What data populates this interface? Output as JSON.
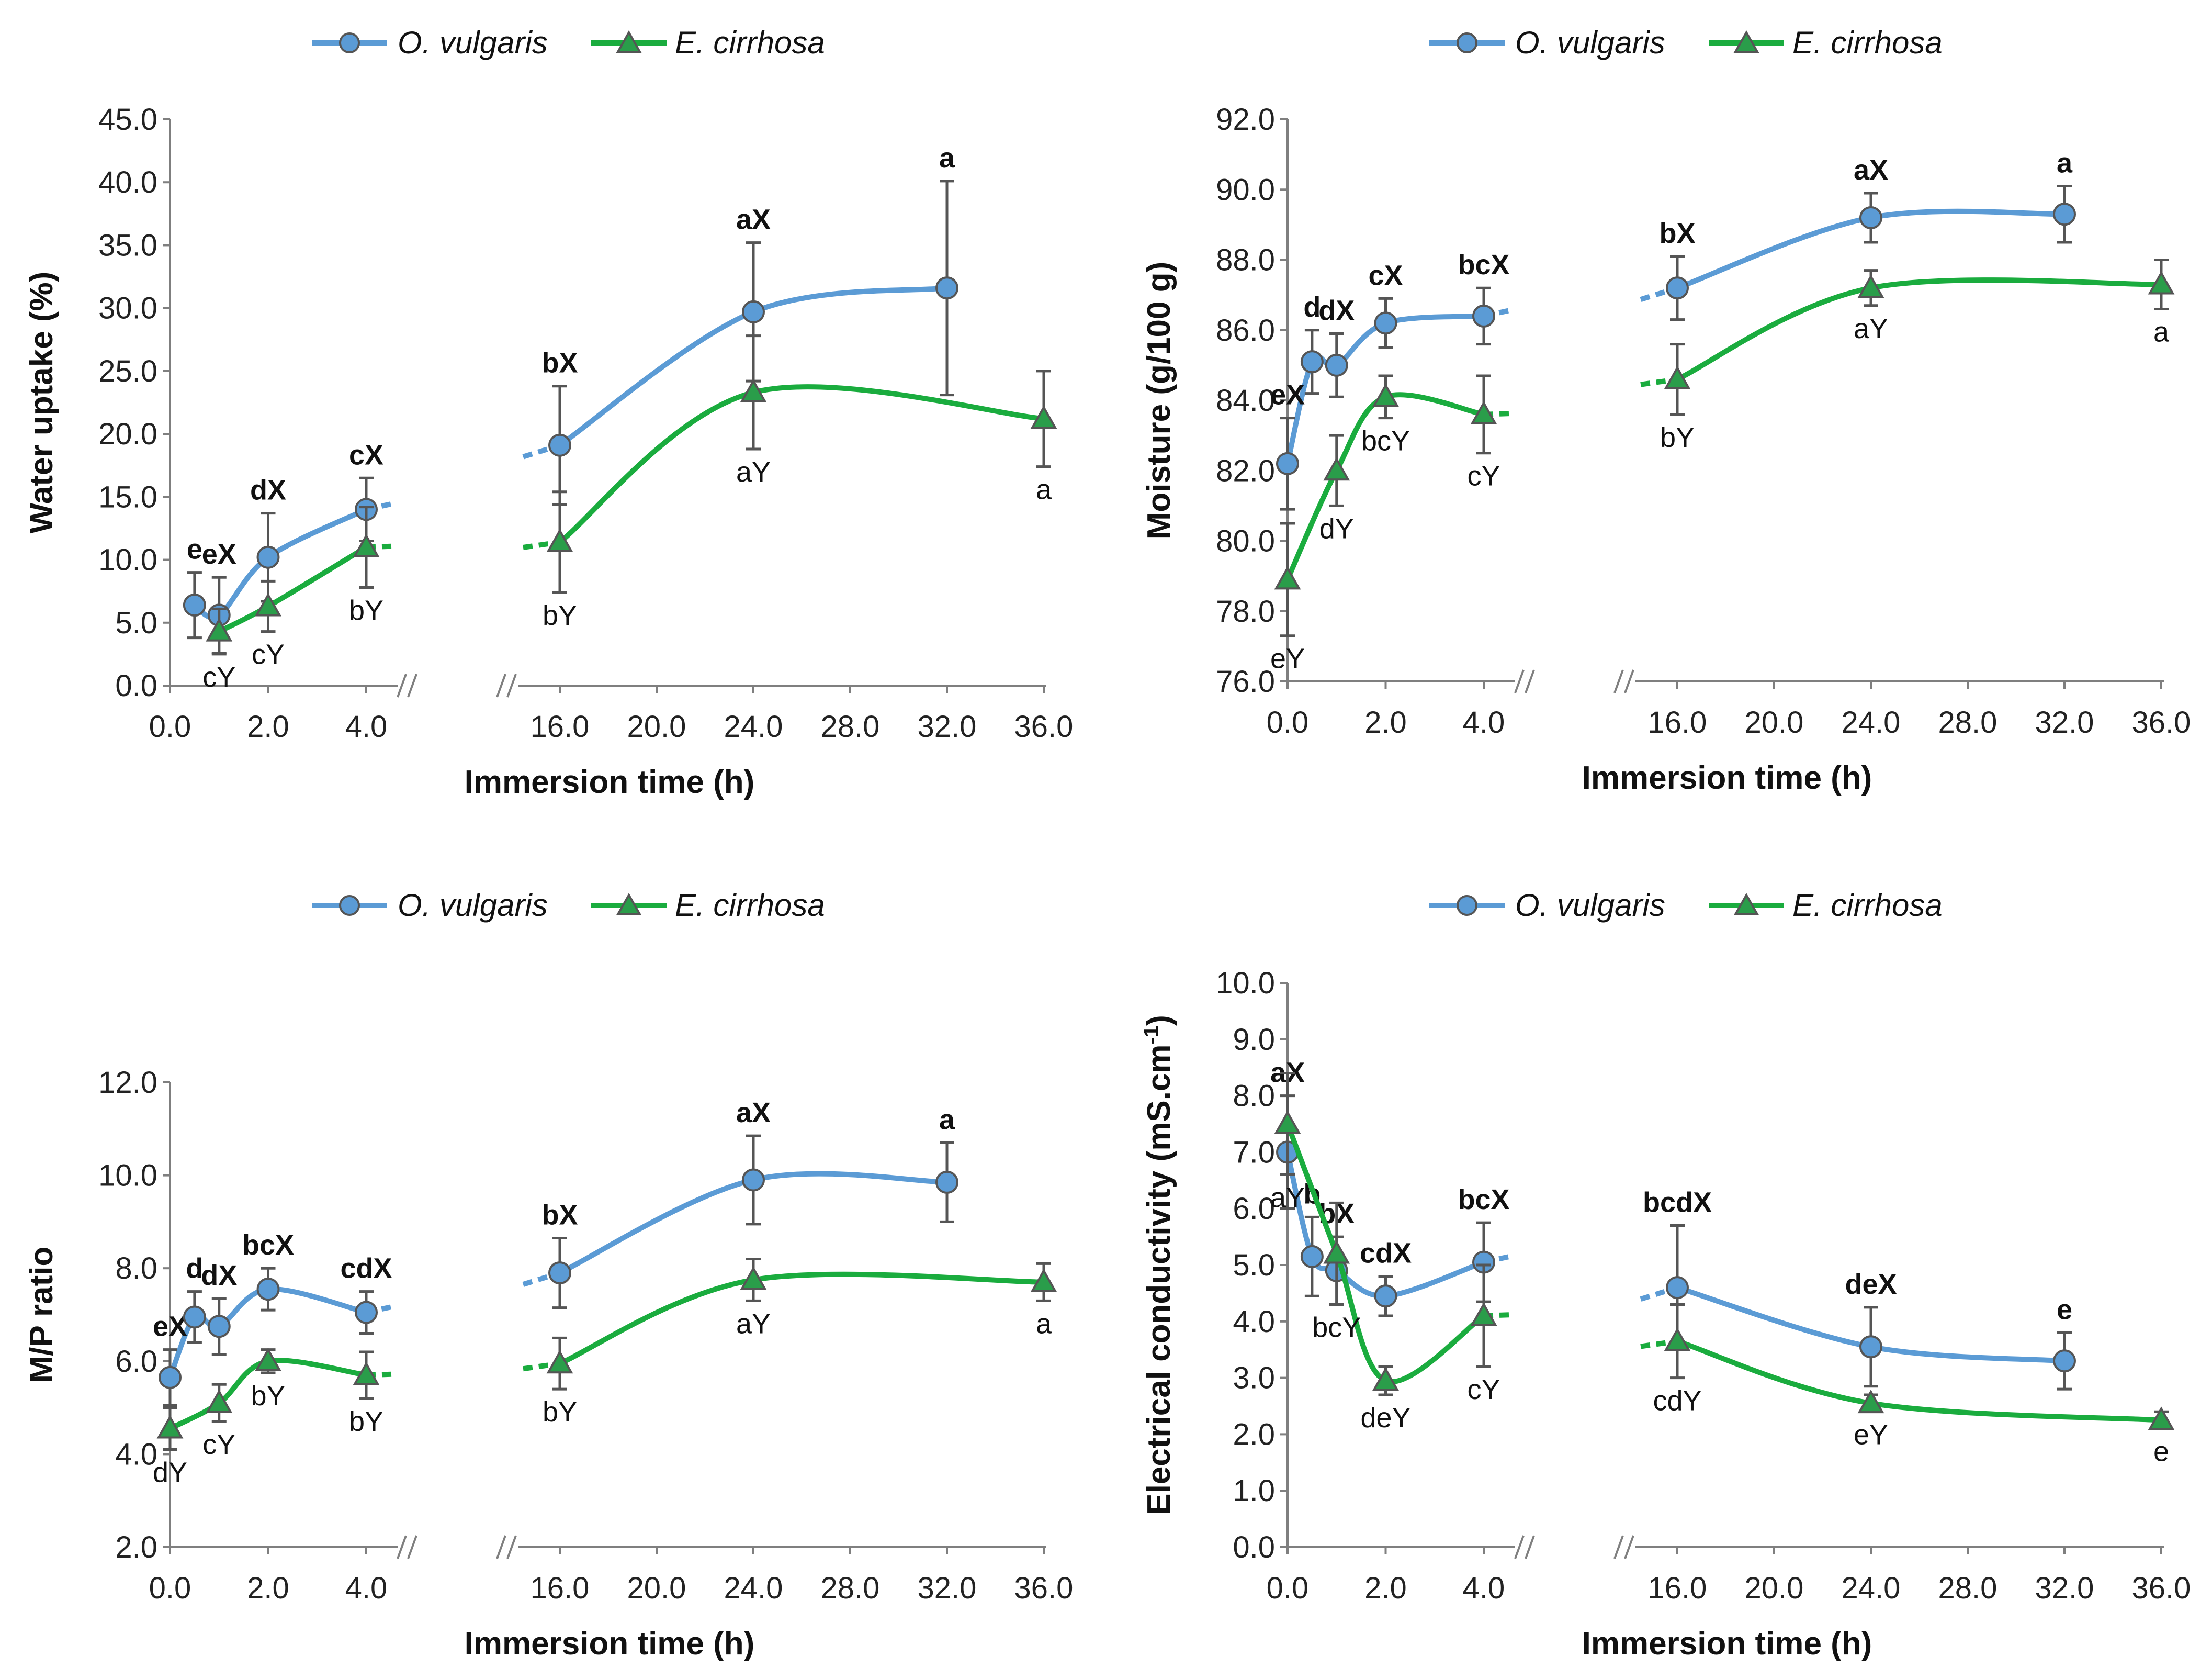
{
  "colors": {
    "ov": "#5b9bd5",
    "ec": "#1aac3e",
    "ov_marker": "#5b9bd5",
    "ec_marker": "#2a9d4a",
    "error": "#555555",
    "axis": "#7f7f7f"
  },
  "legend": {
    "ov": "O. vulgaris",
    "ec": "E. cirrhosa"
  },
  "chart_data": [
    {
      "type": "line",
      "panel": "top-left",
      "ylabel": "Water uptake (%)",
      "xlabel": "Immersion time (h)",
      "ylim": [
        0,
        45
      ],
      "ystep": 5,
      "yticks": [
        "0.0",
        "5.0",
        "10.0",
        "15.0",
        "20.0",
        "25.0",
        "30.0",
        "35.0",
        "40.0",
        "45.0"
      ],
      "xticks_left": [
        "0.0",
        "2.0",
        "4.0"
      ],
      "xticks_right": [
        "16.0",
        "20.0",
        "24.0",
        "28.0",
        "32.0",
        "36.0"
      ],
      "series": [
        {
          "name": "O. vulgaris",
          "left": {
            "x": [
              0.5,
              1,
              2,
              4
            ],
            "y": [
              6.4,
              5.6,
              10.2,
              14.0
            ],
            "err": [
              2.6,
              3.0,
              3.5,
              2.5
            ],
            "labels": [
              "e",
              "eX",
              "dX",
              "cX"
            ]
          },
          "right": {
            "x": [
              16,
              24,
              32
            ],
            "y": [
              19.1,
              29.7,
              31.6
            ],
            "err": [
              4.7,
              5.5,
              8.5
            ],
            "labels": [
              "bX",
              "aX",
              "a"
            ]
          }
        },
        {
          "name": "E. cirrhosa",
          "left": {
            "x": [
              1,
              2,
              4
            ],
            "y": [
              4.3,
              6.3,
              11.0
            ],
            "err": [
              1.8,
              2.0,
              3.2
            ],
            "labels": [
              "cY",
              "cY",
              "bY"
            ]
          },
          "right": {
            "x": [
              16,
              24,
              36
            ],
            "y": [
              11.4,
              23.3,
              21.2
            ],
            "err": [
              4.0,
              4.5,
              3.8
            ],
            "labels": [
              "bY",
              "aY",
              "a"
            ]
          }
        }
      ]
    },
    {
      "type": "line",
      "panel": "top-right",
      "ylabel": "Moisture (g/100 g)",
      "xlabel": "Immersion time (h)",
      "ylim": [
        76,
        92
      ],
      "ystep": 2,
      "yticks": [
        "76.0",
        "78.0",
        "80.0",
        "82.0",
        "84.0",
        "86.0",
        "88.0",
        "90.0",
        "92.0"
      ],
      "xticks_left": [
        "0.0",
        "2.0",
        "4.0"
      ],
      "xticks_right": [
        "16.0",
        "20.0",
        "24.0",
        "28.0",
        "32.0",
        "36.0"
      ],
      "series": [
        {
          "name": "O. vulgaris",
          "left": {
            "x": [
              0,
              0.5,
              1,
              2,
              4
            ],
            "y": [
              82.2,
              85.1,
              85.0,
              86.2,
              86.4
            ],
            "err": [
              1.3,
              0.9,
              0.9,
              0.7,
              0.8
            ],
            "labels": [
              "eX",
              "d",
              "dX",
              "cX",
              "bcX"
            ]
          },
          "right": {
            "x": [
              16,
              24,
              32
            ],
            "y": [
              87.2,
              89.2,
              89.3
            ],
            "err": [
              0.9,
              0.7,
              0.8
            ],
            "labels": [
              "bX",
              "aX",
              "a"
            ]
          }
        },
        {
          "name": "E. cirrhosa",
          "left": {
            "x": [
              0,
              1,
              2,
              4
            ],
            "y": [
              78.9,
              82.0,
              84.1,
              83.6
            ],
            "err": [
              1.6,
              1.0,
              0.6,
              1.1
            ],
            "labels": [
              "eY",
              "dY",
              "bcY",
              "cY"
            ]
          },
          "right": {
            "x": [
              16,
              24,
              36
            ],
            "y": [
              84.6,
              87.2,
              87.3
            ],
            "err": [
              1.0,
              0.5,
              0.7
            ],
            "labels": [
              "bY",
              "aY",
              "a"
            ]
          }
        }
      ]
    },
    {
      "type": "line",
      "panel": "bottom-left",
      "ylabel": "M/P ratio",
      "xlabel": "Immersion time (h)",
      "ylim": [
        2,
        12
      ],
      "ystep": 2,
      "yticks": [
        "2.0",
        "4.0",
        "6.0",
        "8.0",
        "10.0",
        "12.0"
      ],
      "xticks_left": [
        "0.0",
        "2.0",
        "4.0"
      ],
      "xticks_right": [
        "16.0",
        "20.0",
        "24.0",
        "28.0",
        "32.0",
        "36.0"
      ],
      "series": [
        {
          "name": "O. vulgaris",
          "left": {
            "x": [
              0,
              0.5,
              1,
              2,
              4
            ],
            "y": [
              5.65,
              6.95,
              6.75,
              7.55,
              7.05
            ],
            "err": [
              0.6,
              0.55,
              0.6,
              0.45,
              0.45
            ],
            "labels": [
              "eX",
              "d",
              "dX",
              "bcX",
              "cdX"
            ]
          },
          "right": {
            "x": [
              16,
              24,
              32
            ],
            "y": [
              7.9,
              9.9,
              9.85
            ],
            "err": [
              0.75,
              0.95,
              0.85
            ],
            "labels": [
              "bX",
              "aX",
              "a"
            ]
          }
        },
        {
          "name": "E. cirrhosa",
          "left": {
            "x": [
              0,
              1,
              2,
              4
            ],
            "y": [
              4.55,
              5.1,
              6.0,
              5.7
            ],
            "err": [
              0.45,
              0.4,
              0.25,
              0.5
            ],
            "labels": [
              "dY",
              "cY",
              "bY",
              "bY"
            ]
          },
          "right": {
            "x": [
              16,
              24,
              36
            ],
            "y": [
              5.95,
              7.75,
              7.7
            ],
            "err": [
              0.55,
              0.45,
              0.4
            ],
            "labels": [
              "bY",
              "aY",
              "a"
            ]
          }
        }
      ]
    },
    {
      "type": "line",
      "panel": "bottom-right",
      "ylabel": "Electrical conductivity (mS.cm",
      "ylabel_sup": "-1",
      "ylabel_end": ")",
      "xlabel": "Immersion time (h)",
      "ylim": [
        0,
        10
      ],
      "ystep": 1,
      "yticks": [
        "0.0",
        "1.0",
        "2.0",
        "3.0",
        "4.0",
        "5.0",
        "6.0",
        "7.0",
        "8.0",
        "9.0",
        "10.0"
      ],
      "xticks_left": [
        "0.0",
        "2.0",
        "4.0"
      ],
      "xticks_right": [
        "16.0",
        "20.0",
        "24.0",
        "28.0",
        "32.0",
        "36.0"
      ],
      "series": [
        {
          "name": "O. vulgaris",
          "left": {
            "x": [
              0,
              0.5,
              1,
              2,
              4
            ],
            "y": [
              7.0,
              5.15,
              4.9,
              4.45,
              5.05
            ],
            "err": [
              1.0,
              0.7,
              0.6,
              0.35,
              0.7
            ],
            "labels": [
              "aX",
              "b",
              "bX",
              "cdX",
              "bcX"
            ]
          },
          "right": {
            "x": [
              16,
              24,
              32
            ],
            "y": [
              4.6,
              3.55,
              3.3
            ],
            "err": [
              1.1,
              0.7,
              0.5
            ],
            "labels": [
              "bcdX",
              "deX",
              "e"
            ]
          }
        },
        {
          "name": "E. cirrhosa",
          "left": {
            "x": [
              0,
              1,
              2,
              4
            ],
            "y": [
              7.5,
              5.2,
              2.95,
              4.1
            ],
            "err": [
              0.9,
              0.9,
              0.25,
              0.9
            ],
            "labels": [
              "aY",
              "bcY",
              "deY",
              "cY"
            ]
          },
          "right": {
            "x": [
              16,
              24,
              36
            ],
            "y": [
              3.65,
              2.55,
              2.25
            ],
            "err": [
              0.65,
              0.15,
              0.15
            ],
            "labels": [
              "cdY",
              "eY",
              "e"
            ]
          }
        }
      ]
    }
  ]
}
